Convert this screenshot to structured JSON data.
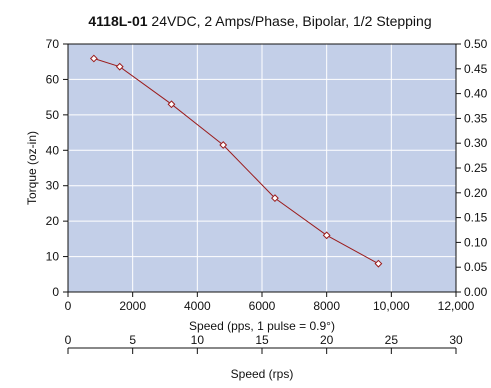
{
  "chart_data": {
    "type": "line",
    "title_bold": "4118L-01",
    "title_rest": " 24VDC, 2 Amps/Phase, Bipolar, 1/2 Stepping",
    "xlabel": "Speed (pps, 1 pulse = 0.9°)",
    "ylabel": "Torque (oz-in)",
    "xlim": [
      0,
      12000
    ],
    "ylim": [
      0,
      70
    ],
    "x_ticks": [
      "0",
      "2000",
      "4000",
      "6000",
      "8000",
      "10,000",
      "12,000"
    ],
    "y_ticks": [
      "0",
      "10",
      "20",
      "30",
      "40",
      "50",
      "60",
      "70"
    ],
    "y2_ticks": [
      "0.00",
      "0.05",
      "0.10",
      "0.15",
      "0.20",
      "0.25",
      "0.30",
      "0.35",
      "0.40",
      "0.45",
      "0.50"
    ],
    "y2lim": [
      0,
      0.5
    ],
    "x2label": "Speed (rps)",
    "x2lim": [
      0,
      30
    ],
    "x2_ticks": [
      "0",
      "5",
      "10",
      "15",
      "20",
      "25",
      "30"
    ],
    "grid": true,
    "colors": {
      "plot_bg": "#c3cfe8",
      "grid": "#ffffff",
      "line": "#9b1c1c",
      "marker_fill": "#ffffff"
    },
    "series": [
      {
        "x": [
          800,
          1600,
          3200,
          4800,
          6400,
          8000,
          9600
        ],
        "y": [
          65.9,
          63.6,
          53.0,
          41.5,
          26.5,
          16.0,
          8.0
        ]
      }
    ]
  }
}
